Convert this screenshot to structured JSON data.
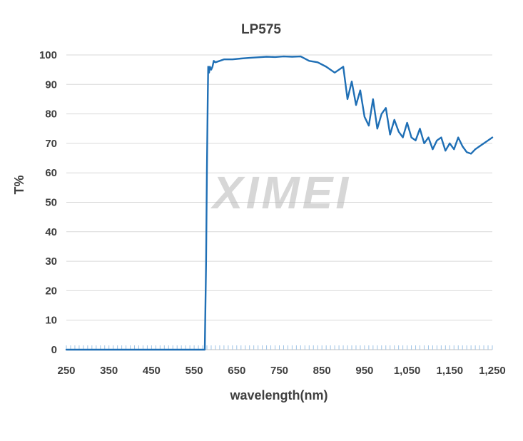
{
  "chart_data": {
    "type": "line",
    "title": "LP575",
    "xlabel": "wavelength(nm)",
    "ylabel": "T%",
    "xlim": [
      250,
      1250
    ],
    "ylim": [
      0,
      100
    ],
    "x_ticks": [
      "250",
      "350",
      "450",
      "550",
      "650",
      "750",
      "850",
      "950",
      "1,050",
      "1,150",
      "1,250"
    ],
    "y_ticks": [
      "0",
      "10",
      "20",
      "30",
      "40",
      "50",
      "60",
      "70",
      "80",
      "90",
      "100"
    ],
    "grid": true,
    "line_color": "#1f6fb5",
    "series": [
      {
        "x": [
          250,
          400,
          575,
          578,
          580,
          582,
          583,
          585,
          587,
          590,
          593,
          596,
          600,
          610,
          620,
          640,
          660,
          680,
          700,
          720,
          740,
          760,
          780,
          800,
          820,
          840,
          860,
          880,
          900,
          910,
          920,
          930,
          940,
          950,
          960,
          970,
          980,
          990,
          1000,
          1010,
          1020,
          1030,
          1040,
          1050,
          1060,
          1070,
          1080,
          1090,
          1100,
          1110,
          1120,
          1130,
          1140,
          1150,
          1160,
          1170,
          1180,
          1190,
          1200,
          1210,
          1220,
          1230,
          1240,
          1250
        ],
        "y": [
          0,
          0,
          0,
          29,
          61,
          86,
          96,
          94,
          96,
          95,
          96,
          98,
          97.5,
          98,
          98.5,
          98.5,
          98.8,
          99,
          99.2,
          99.4,
          99.3,
          99.5,
          99.4,
          99.5,
          98,
          97.5,
          96,
          94,
          96,
          85,
          91,
          83,
          88,
          79,
          76,
          85,
          75,
          80,
          82,
          73,
          78,
          74,
          72,
          77,
          72,
          71,
          75,
          70,
          72,
          68,
          71,
          72,
          67.5,
          70,
          68,
          72,
          69,
          67,
          66.5,
          68,
          69,
          70,
          71,
          72
        ]
      }
    ],
    "watermark": "XIMEI"
  }
}
